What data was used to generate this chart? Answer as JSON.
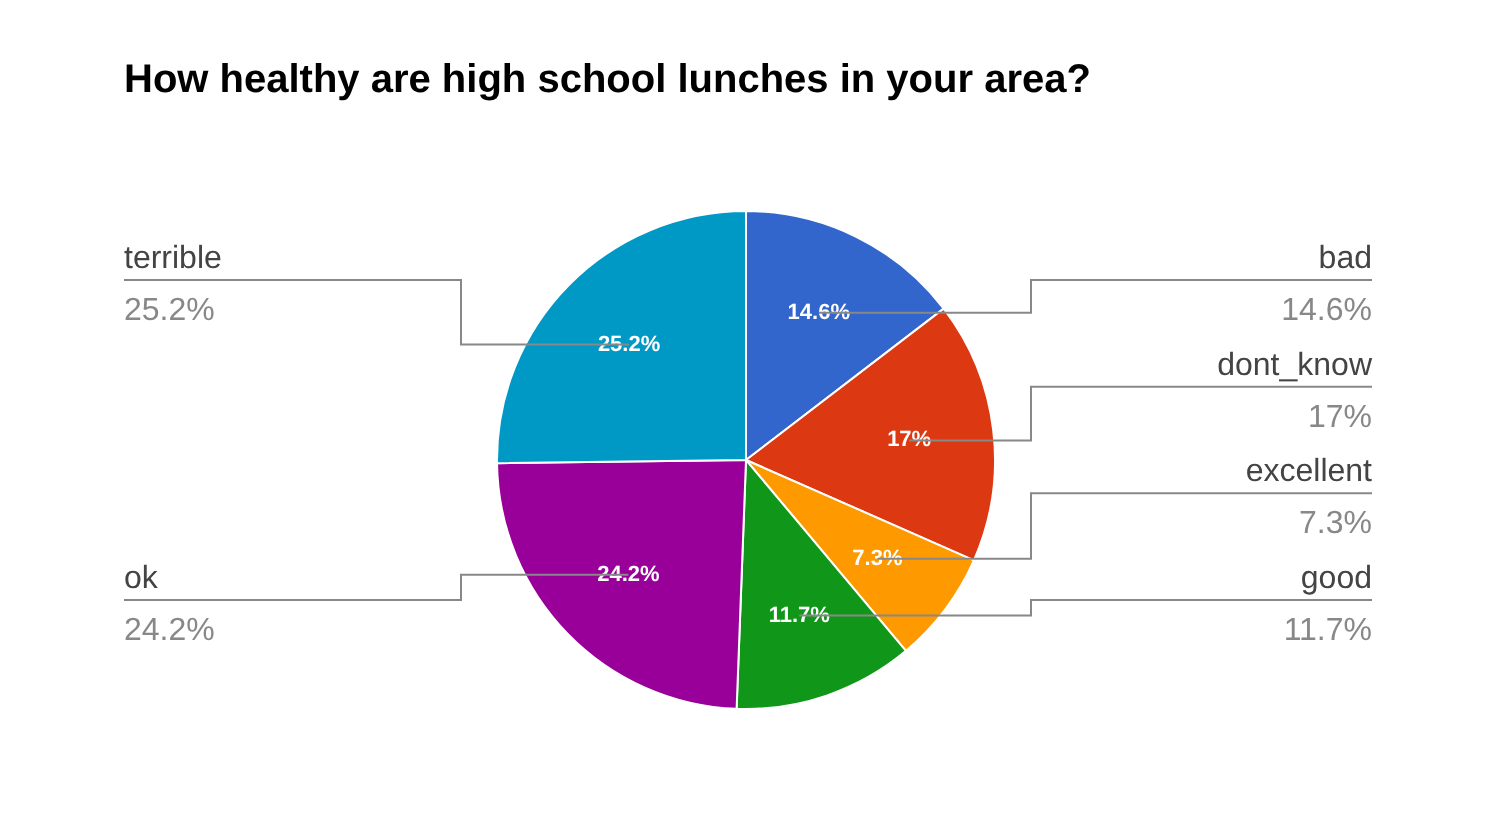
{
  "chart_data": {
    "type": "pie",
    "title": "How healthy are high school lunches in your area?",
    "categories": [
      "bad",
      "dont_know",
      "excellent",
      "good",
      "ok",
      "terrible"
    ],
    "values": [
      14.6,
      17,
      7.3,
      11.7,
      24.2,
      25.2
    ],
    "colors": [
      "#3366cc",
      "#dc3912",
      "#ff9900",
      "#109618",
      "#990099",
      "#0099c6"
    ],
    "value_labels": [
      "14.6%",
      "17%",
      "7.3%",
      "11.7%",
      "24.2%",
      "25.2%"
    ],
    "legend": false
  }
}
